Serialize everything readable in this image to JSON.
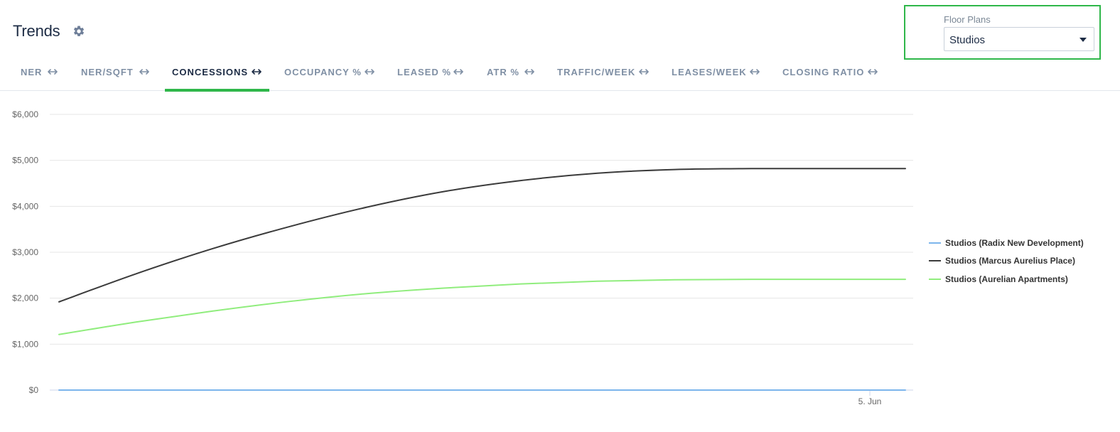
{
  "header": {
    "title": "Trends"
  },
  "floor_plans": {
    "label": "Floor Plans",
    "selected": "Studios"
  },
  "tabs": [
    {
      "label": "NER",
      "active": false
    },
    {
      "label": "NER/SQFT",
      "active": false
    },
    {
      "label": "CONCESSIONS",
      "active": true
    },
    {
      "label": "OCCUPANCY %",
      "active": false
    },
    {
      "label": "LEASED %",
      "active": false
    },
    {
      "label": "ATR %",
      "active": false
    },
    {
      "label": "TRAFFIC/WEEK",
      "active": false
    },
    {
      "label": "LEASES/WEEK",
      "active": false
    },
    {
      "label": "CLOSING RATIO",
      "active": false
    }
  ],
  "colors": {
    "accent": "#2fb74a",
    "tab_inactive": "#7f8fa4",
    "tab_active": "#1c2b44",
    "grid": "#e6e6e6"
  },
  "chart_data": {
    "type": "line",
    "title": "",
    "xlabel": "",
    "ylabel": "",
    "ylim": [
      0,
      6000
    ],
    "yticks": [
      "$0",
      "$1,000",
      "$2,000",
      "$3,000",
      "$4,000",
      "$5,000",
      "$6,000"
    ],
    "ytick_values": [
      0,
      1000,
      2000,
      3000,
      4000,
      5000,
      6000
    ],
    "xtick_labels": [
      "5. Jun"
    ],
    "grid": true,
    "legend_position": "right",
    "series": [
      {
        "name": "Studios (Radix New Development)",
        "color": "#7cb5ec",
        "values": [
          0,
          0,
          0,
          0,
          0,
          0,
          0,
          0,
          0,
          0,
          0,
          0
        ]
      },
      {
        "name": "Studios (Marcus Aurelius Place)",
        "color": "#3b3b3b",
        "values": [
          1920,
          2530,
          3080,
          3560,
          3980,
          4320,
          4560,
          4720,
          4800,
          4820,
          4820,
          4820
        ]
      },
      {
        "name": "Studios (Aurelian Apartments)",
        "color": "#90ed7d",
        "values": [
          1210,
          1480,
          1720,
          1930,
          2100,
          2220,
          2310,
          2370,
          2400,
          2410,
          2410,
          2410
        ]
      }
    ]
  }
}
